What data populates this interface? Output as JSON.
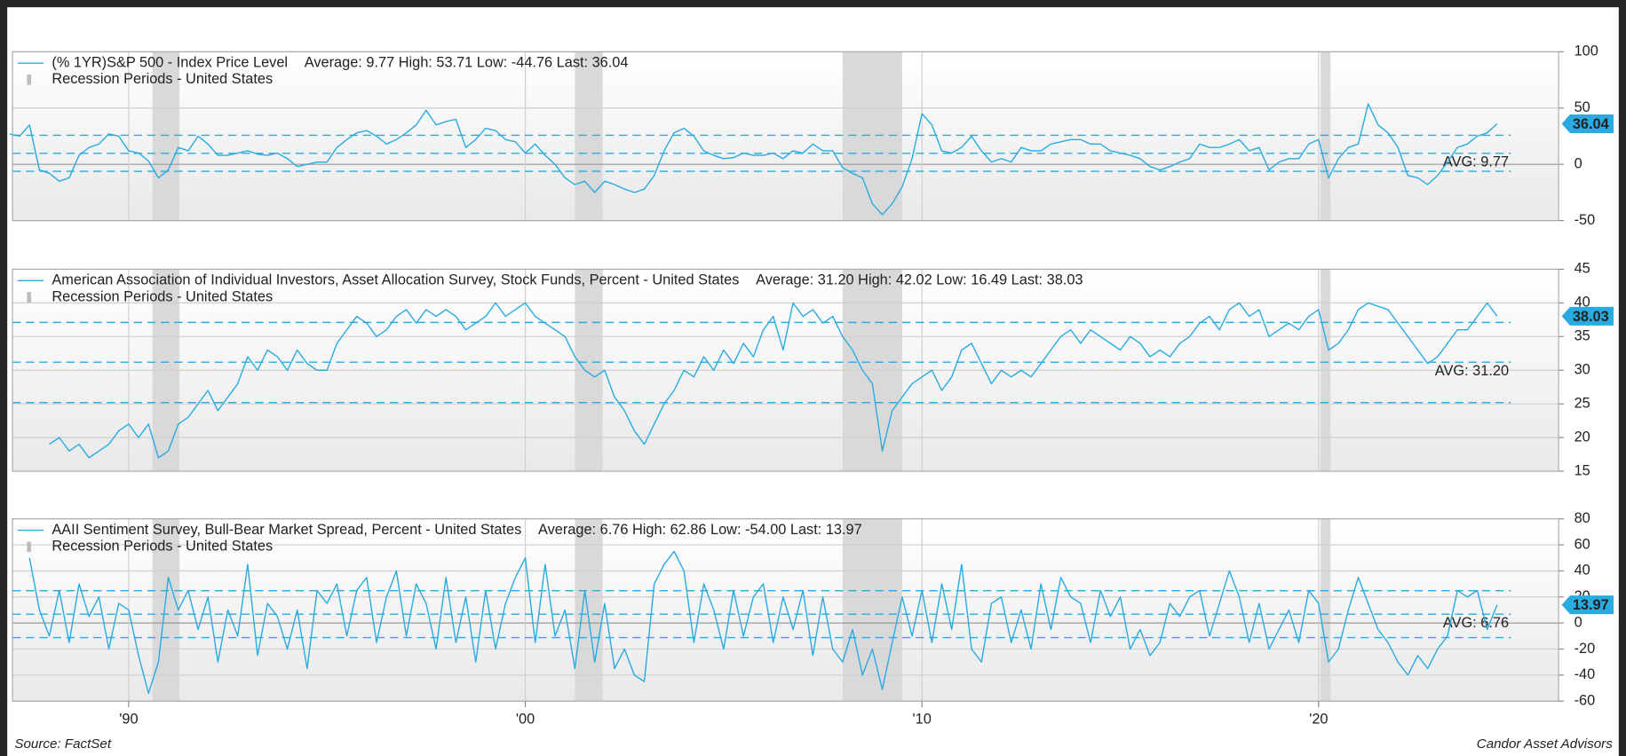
{
  "chart_data": [
    {
      "type": "line",
      "series": [
        {
          "name": "(% 1YR)S&P 500 - Index Price Level",
          "color": "#29abe2",
          "values": [
            27,
            25,
            35,
            -5,
            -8,
            -15,
            -12,
            8,
            15,
            18,
            27,
            25,
            12,
            10,
            3,
            -12,
            -5,
            15,
            12,
            25,
            18,
            8,
            8,
            10,
            12,
            9,
            8,
            10,
            5,
            -2,
            0,
            2,
            2,
            15,
            22,
            28,
            30,
            25,
            18,
            22,
            28,
            35,
            48,
            35,
            38,
            40,
            15,
            22,
            32,
            30,
            22,
            20,
            10,
            18,
            8,
            0,
            -12,
            -18,
            -15,
            -25,
            -15,
            -18,
            -22,
            -25,
            -22,
            -10,
            12,
            28,
            32,
            25,
            12,
            8,
            5,
            6,
            10,
            8,
            8,
            10,
            5,
            12,
            10,
            18,
            12,
            12,
            -3,
            -8,
            -12,
            -35,
            -44.76,
            -35,
            -20,
            5,
            45,
            35,
            12,
            10,
            15,
            25,
            12,
            2,
            5,
            2,
            15,
            12,
            12,
            18,
            20,
            22,
            22,
            18,
            18,
            12,
            10,
            8,
            5,
            -2,
            -5,
            -2,
            2,
            5,
            18,
            15,
            15,
            18,
            22,
            12,
            15,
            -5,
            2,
            5,
            5,
            18,
            22,
            -12,
            5,
            15,
            18,
            53.71,
            35,
            28,
            15,
            -10,
            -12,
            -18,
            -10,
            2,
            15,
            18,
            25,
            28,
            36.04
          ]
        }
      ],
      "x": [
        1987,
        1987.25,
        1987.5,
        1987.75,
        1988,
        1988.25,
        1988.5,
        1988.75,
        1989,
        1989.25,
        1989.5,
        1989.75,
        1990,
        1990.25,
        1990.5,
        1990.75,
        1991,
        1991.25,
        1991.5,
        1991.75,
        1992,
        1992.25,
        1992.5,
        1992.75,
        1993,
        1993.25,
        1993.5,
        1993.75,
        1994,
        1994.25,
        1994.5,
        1994.75,
        1995,
        1995.25,
        1995.5,
        1995.75,
        1996,
        1996.25,
        1996.5,
        1996.75,
        1997,
        1997.25,
        1997.5,
        1997.75,
        1998,
        1998.25,
        1998.5,
        1998.75,
        1999,
        1999.25,
        1999.5,
        1999.75,
        2000,
        2000.25,
        2000.5,
        2000.75,
        2001,
        2001.25,
        2001.5,
        2001.75,
        2002,
        2002.25,
        2002.5,
        2002.75,
        2003,
        2003.25,
        2003.5,
        2003.75,
        2004,
        2004.25,
        2004.5,
        2004.75,
        2005,
        2005.25,
        2005.5,
        2005.75,
        2006,
        2006.25,
        2006.5,
        2006.75,
        2007,
        2007.25,
        2007.5,
        2007.75,
        2008,
        2008.25,
        2008.5,
        2008.75,
        2009,
        2009.25,
        2009.5,
        2009.75,
        2010,
        2010.25,
        2010.5,
        2010.75,
        2011,
        2011.25,
        2011.5,
        2011.75,
        2012,
        2012.25,
        2012.5,
        2012.75,
        2013,
        2013.25,
        2013.5,
        2013.75,
        2014,
        2014.25,
        2014.5,
        2014.75,
        2015,
        2015.25,
        2015.5,
        2015.75,
        2016,
        2016.25,
        2016.5,
        2016.75,
        2017,
        2017.25,
        2017.5,
        2017.75,
        2018,
        2018.25,
        2018.5,
        2018.75,
        2019,
        2019.25,
        2019.5,
        2019.75,
        2020,
        2020.25,
        2020.5,
        2020.75,
        2021,
        2021.25,
        2021.5,
        2021.75,
        2022,
        2022.25,
        2022.5,
        2022.75,
        2023,
        2023.25,
        2023.5,
        2023.75,
        2024,
        2024.25,
        2024.5
      ],
      "stats": "Average: 9.77 High: 53.71 Low: -44.76 Last: 36.04",
      "average": {
        "value": 9.77,
        "label": "AVG: 9.77"
      },
      "bands": [
        25.8,
        -6.2
      ],
      "recessions": {
        "name": "Recession Periods - United States",
        "color": "#d9d9d9",
        "periods": [
          [
            1990.6,
            1991.28
          ],
          [
            2001.25,
            2001.95
          ],
          [
            2008.0,
            2009.5
          ],
          [
            2020.05,
            2020.3
          ]
        ]
      },
      "ylim": [
        -50,
        100
      ],
      "yticks": [
        -50,
        0,
        50,
        100
      ]
    },
    {
      "type": "line",
      "series": [
        {
          "name": "American Association of Individual Investors, Asset Allocation Survey, Stock Funds, Percent - United States",
          "color": "#29abe2",
          "values": [
            19,
            20,
            18,
            19,
            17,
            18,
            19,
            21,
            22,
            20,
            22,
            17,
            18,
            22,
            23,
            25,
            27,
            24,
            26,
            28,
            32,
            30,
            33,
            32,
            30,
            33,
            31,
            30,
            30,
            34,
            36,
            38,
            37,
            35,
            36,
            38,
            39,
            37,
            39,
            38,
            39,
            38,
            36,
            37,
            38,
            40,
            38,
            39,
            40,
            38,
            37,
            36,
            35,
            32,
            30,
            29,
            30,
            26,
            24,
            21,
            19,
            22,
            25,
            27,
            30,
            29,
            32,
            30,
            33,
            31,
            34,
            32,
            36,
            38,
            33,
            40,
            38,
            39,
            37,
            38,
            35,
            33,
            30,
            28,
            18,
            24,
            26,
            28,
            29,
            30,
            27,
            29,
            33,
            34,
            31,
            28,
            30,
            29,
            30,
            29,
            31,
            33,
            35,
            36,
            34,
            36,
            35,
            34,
            33,
            35,
            34,
            32,
            33,
            32,
            34,
            35,
            37,
            38,
            36,
            39,
            40,
            38,
            39,
            35,
            36,
            37,
            36,
            38,
            39,
            33,
            34,
            36,
            39,
            40,
            39.5,
            39,
            37,
            35,
            33,
            31,
            32,
            34,
            36,
            36,
            38,
            40,
            38.03
          ]
        }
      ],
      "x": [
        1988,
        1988.25,
        1988.5,
        1988.75,
        1989,
        1989.25,
        1989.5,
        1989.75,
        1990,
        1990.25,
        1990.5,
        1990.75,
        1991,
        1991.25,
        1991.5,
        1991.75,
        1992,
        1992.25,
        1992.5,
        1992.75,
        1993,
        1993.25,
        1993.5,
        1993.75,
        1994,
        1994.25,
        1994.5,
        1994.75,
        1995,
        1995.25,
        1995.5,
        1995.75,
        1996,
        1996.25,
        1996.5,
        1996.75,
        1997,
        1997.25,
        1997.5,
        1997.75,
        1998,
        1998.25,
        1998.5,
        1998.75,
        1999,
        1999.25,
        1999.5,
        1999.75,
        2000,
        2000.25,
        2000.5,
        2000.75,
        2001,
        2001.25,
        2001.5,
        2001.75,
        2002,
        2002.25,
        2002.5,
        2002.75,
        2003,
        2003.25,
        2003.5,
        2003.75,
        2004,
        2004.25,
        2004.5,
        2004.75,
        2005,
        2005.25,
        2005.5,
        2005.75,
        2006,
        2006.25,
        2006.5,
        2006.75,
        2007,
        2007.25,
        2007.5,
        2007.75,
        2008,
        2008.25,
        2008.5,
        2008.75,
        2009,
        2009.25,
        2009.5,
        2009.75,
        2010,
        2010.25,
        2010.5,
        2010.75,
        2011,
        2011.25,
        2011.5,
        2011.75,
        2012,
        2012.25,
        2012.5,
        2012.75,
        2013,
        2013.25,
        2013.5,
        2013.75,
        2014,
        2014.25,
        2014.5,
        2014.75,
        2015,
        2015.25,
        2015.5,
        2015.75,
        2016,
        2016.25,
        2016.5,
        2016.75,
        2017,
        2017.25,
        2017.5,
        2017.75,
        2018,
        2018.25,
        2018.5,
        2018.75,
        2019,
        2019.25,
        2019.5,
        2019.75,
        2020,
        2020.25,
        2020.5,
        2020.75,
        2021,
        2021.25,
        2021.5,
        2021.75,
        2022,
        2022.25,
        2022.5,
        2022.75,
        2023,
        2023.25,
        2023.5,
        2023.75,
        2024,
        2024.25,
        2024.5
      ],
      "stats": "Average: 31.20 High: 42.02 Low: 16.49 Last: 38.03",
      "average": {
        "value": 31.2,
        "label": "AVG: 31.20"
      },
      "bands": [
        37.1,
        25.2
      ],
      "recessions": {
        "name": "Recession Periods - United States",
        "color": "#d9d9d9",
        "periods": [
          [
            1990.6,
            1991.28
          ],
          [
            2001.25,
            2001.95
          ],
          [
            2008.0,
            2009.5
          ],
          [
            2020.05,
            2020.3
          ]
        ]
      },
      "ylim": [
        15,
        45
      ],
      "yticks": [
        15,
        20,
        25,
        30,
        35,
        40,
        45
      ]
    },
    {
      "type": "line",
      "series": [
        {
          "name": "AAII Sentiment Survey, Bull-Bear Market Spread, Percent - United States",
          "color": "#29abe2",
          "values": [
            50,
            10,
            -10,
            25,
            -15,
            30,
            5,
            20,
            -20,
            15,
            10,
            -25,
            -54,
            -30,
            35,
            10,
            25,
            -5,
            20,
            -30,
            10,
            -10,
            45,
            -25,
            15,
            5,
            -20,
            10,
            -35,
            25,
            15,
            30,
            -10,
            25,
            35,
            -15,
            20,
            40,
            -10,
            30,
            15,
            -20,
            35,
            -15,
            20,
            -30,
            25,
            -20,
            15,
            35,
            50,
            -15,
            45,
            -10,
            10,
            -35,
            25,
            -30,
            15,
            -35,
            -20,
            -40,
            -45,
            30,
            45,
            55,
            40,
            -15,
            30,
            10,
            -20,
            25,
            -10,
            20,
            30,
            -15,
            20,
            -5,
            25,
            -25,
            20,
            -20,
            -30,
            -5,
            -40,
            -20,
            -51,
            -15,
            20,
            -10,
            25,
            -15,
            30,
            -5,
            45,
            -20,
            -30,
            15,
            20,
            -15,
            10,
            -20,
            30,
            -5,
            35,
            20,
            15,
            -15,
            25,
            5,
            20,
            -20,
            -5,
            -25,
            -15,
            15,
            5,
            20,
            25,
            -10,
            15,
            40,
            20,
            -15,
            15,
            -20,
            -5,
            10,
            -15,
            25,
            15,
            -30,
            -20,
            10,
            35,
            15,
            -5,
            -15,
            -30,
            -40,
            -25,
            -35,
            -20,
            -10,
            25,
            20,
            25,
            -5,
            13.97
          ]
        }
      ],
      "x": [
        1987.5,
        1987.75,
        1988,
        1988.25,
        1988.5,
        1988.75,
        1989,
        1989.25,
        1989.5,
        1989.75,
        1990,
        1990.25,
        1990.5,
        1990.75,
        1991,
        1991.25,
        1991.5,
        1991.75,
        1992,
        1992.25,
        1992.5,
        1992.75,
        1993,
        1993.25,
        1993.5,
        1993.75,
        1994,
        1994.25,
        1994.5,
        1994.75,
        1995,
        1995.25,
        1995.5,
        1995.75,
        1996,
        1996.25,
        1996.5,
        1996.75,
        1997,
        1997.25,
        1997.5,
        1997.75,
        1998,
        1998.25,
        1998.5,
        1998.75,
        1999,
        1999.25,
        1999.5,
        1999.75,
        2000,
        2000.25,
        2000.5,
        2000.75,
        2001,
        2001.25,
        2001.5,
        2001.75,
        2002,
        2002.25,
        2002.5,
        2002.75,
        2003,
        2003.25,
        2003.5,
        2003.75,
        2004,
        2004.25,
        2004.5,
        2004.75,
        2005,
        2005.25,
        2005.5,
        2005.75,
        2006,
        2006.25,
        2006.5,
        2006.75,
        2007,
        2007.25,
        2007.5,
        2007.75,
        2008,
        2008.25,
        2008.5,
        2008.75,
        2009,
        2009.25,
        2009.5,
        2009.75,
        2010,
        2010.25,
        2010.5,
        2010.75,
        2011,
        2011.25,
        2011.5,
        2011.75,
        2012,
        2012.25,
        2012.5,
        2012.75,
        2013,
        2013.25,
        2013.5,
        2013.75,
        2014,
        2014.25,
        2014.5,
        2014.75,
        2015,
        2015.25,
        2015.5,
        2015.75,
        2016,
        2016.25,
        2016.5,
        2016.75,
        2017,
        2017.25,
        2017.5,
        2017.75,
        2018,
        2018.25,
        2018.5,
        2018.75,
        2019,
        2019.25,
        2019.5,
        2019.75,
        2020,
        2020.25,
        2020.5,
        2020.75,
        2021,
        2021.25,
        2021.5,
        2021.75,
        2022,
        2022.25,
        2022.5,
        2022.75,
        2023,
        2023.25,
        2023.5,
        2023.75,
        2024,
        2024.25,
        2024.5
      ],
      "stats": "Average: 6.76 High: 62.86 Low: -54.00 Last: 13.97",
      "average": {
        "value": 6.76,
        "label": "AVG: 6.76"
      },
      "bands": [
        24.8,
        -11.2
      ],
      "recessions": {
        "name": "Recession Periods - United States",
        "color": "#d9d9d9",
        "periods": [
          [
            1990.6,
            1991.28
          ],
          [
            2001.25,
            2001.95
          ],
          [
            2008.0,
            2009.5
          ],
          [
            2020.05,
            2020.3
          ]
        ]
      },
      "ylim": [
        -60,
        80
      ],
      "yticks": [
        -60,
        -40,
        -20,
        0,
        20,
        40,
        60,
        80
      ],
      "xlim": [
        1987.07,
        2026.05
      ],
      "xticks": [
        {
          "value": 1990,
          "label": "'90"
        },
        {
          "value": 2000,
          "label": "'00"
        },
        {
          "value": 2010,
          "label": "'10"
        },
        {
          "value": 2020,
          "label": "'20"
        }
      ]
    }
  ],
  "footer": {
    "source": "Source: FactSet",
    "credit": "Candor Asset Advisors"
  }
}
